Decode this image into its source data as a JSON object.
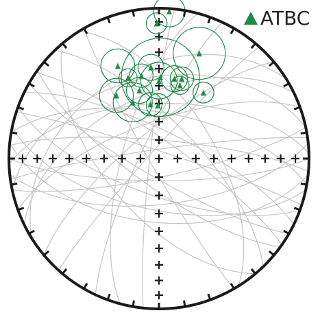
{
  "legend": {
    "label": "ATBC",
    "marker": "triangle",
    "color": "#1e8a46"
  },
  "colors": {
    "outline": "#1a1a1a",
    "great_circle": "#c4c4c4",
    "data": "#1e8a46"
  },
  "plot": {
    "projection": "stereonet",
    "grid_marks": "plus",
    "tick_interval_deg": 10
  },
  "points": [
    {
      "az": 4,
      "plunge": 2,
      "cone": 12
    },
    {
      "az": 359,
      "plunge": 11,
      "cone": 8
    },
    {
      "az": 21,
      "plunge": 26,
      "cone": 20
    },
    {
      "az": 336,
      "plunge": 33,
      "cone": 13
    },
    {
      "az": 339,
      "plunge": 42,
      "cone": 7
    },
    {
      "az": 355,
      "plunge": 39,
      "cone": 10
    },
    {
      "az": 348,
      "plunge": 43,
      "cone": 9
    },
    {
      "az": 1,
      "plunge": 45,
      "cone": 30
    },
    {
      "az": 0,
      "plunge": 47,
      "cone": 14
    },
    {
      "az": 11,
      "plunge": 45,
      "cone": 10
    },
    {
      "az": 16,
      "plunge": 44,
      "cone": 9
    },
    {
      "az": 16,
      "plunge": 48,
      "cone": 7
    },
    {
      "az": 34,
      "plunge": 46,
      "cone": 8
    },
    {
      "az": 344,
      "plunge": 51,
      "cone": 10
    },
    {
      "az": 326,
      "plunge": 48,
      "cone": 13
    },
    {
      "az": 335,
      "plunge": 56,
      "cone": 15
    },
    {
      "az": 351,
      "plunge": 60,
      "cone": 9
    },
    {
      "az": 359,
      "plunge": 61,
      "cone": 9
    }
  ],
  "planes": [
    {
      "strike": 262,
      "dip": 85
    },
    {
      "strike": 268,
      "dip": 60
    },
    {
      "strike": 258,
      "dip": 45
    },
    {
      "strike": 250,
      "dip": 70
    },
    {
      "strike": 244,
      "dip": 55
    },
    {
      "strike": 275,
      "dip": 80
    },
    {
      "strike": 280,
      "dip": 65
    },
    {
      "strike": 90,
      "dip": 78
    },
    {
      "strike": 96,
      "dip": 55
    },
    {
      "strike": 102,
      "dip": 62
    },
    {
      "strike": 110,
      "dip": 70
    },
    {
      "strike": 120,
      "dip": 80
    },
    {
      "strike": 84,
      "dip": 65
    },
    {
      "strike": 78,
      "dip": 80
    },
    {
      "strike": 230,
      "dip": 75
    },
    {
      "strike": 222,
      "dip": 85
    },
    {
      "strike": 205,
      "dip": 80
    },
    {
      "strike": 288,
      "dip": 86
    },
    {
      "strike": 296,
      "dip": 75
    },
    {
      "strike": 305,
      "dip": 80
    },
    {
      "strike": 316,
      "dip": 70
    },
    {
      "strike": 328,
      "dip": 60
    },
    {
      "strike": 186,
      "dip": 85
    },
    {
      "strike": 195,
      "dip": 70
    },
    {
      "strike": 126,
      "dip": 75
    },
    {
      "strike": 140,
      "dip": 60
    },
    {
      "strike": 150,
      "dip": 85
    },
    {
      "strike": 238,
      "dip": 40
    }
  ]
}
